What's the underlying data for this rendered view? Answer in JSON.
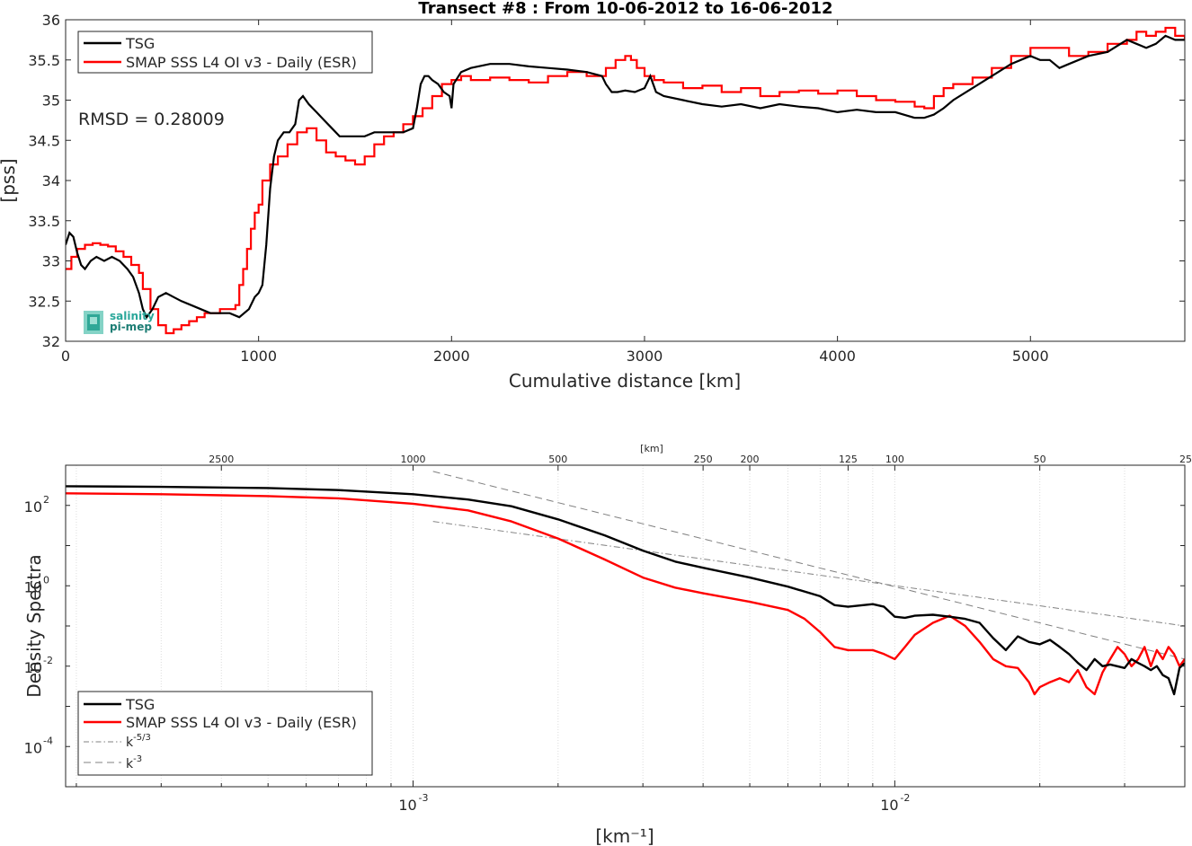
{
  "chart_data": [
    {
      "type": "line",
      "title": "Transect #8 : From 10-06-2012 to 16-06-2012",
      "xlabel": "Cumulative distance [km]",
      "ylabel": "[pss]",
      "xlim": [
        0,
        5800
      ],
      "ylim": [
        32,
        36
      ],
      "xticks": [
        0,
        1000,
        2000,
        3000,
        4000,
        5000
      ],
      "yticks": [
        32,
        32.5,
        33,
        33.5,
        34,
        34.5,
        35,
        35.5,
        36
      ],
      "xtick_labels": [
        "0",
        "1000",
        "2000",
        "3000",
        "4000",
        "5000"
      ],
      "ytick_labels": [
        "32",
        "32.5",
        "33",
        "33.5",
        "34",
        "34.5",
        "35",
        "35.5",
        "36"
      ],
      "grid": false,
      "legend_position": "top-left",
      "annotation": "RMSD = 0.28009",
      "logo": [
        "salinity",
        "pi-mep"
      ],
      "series": [
        {
          "name": "TSG",
          "color": "#000000",
          "x": [
            0,
            20,
            40,
            60,
            80,
            100,
            130,
            160,
            200,
            240,
            280,
            320,
            350,
            380,
            400,
            420,
            450,
            480,
            520,
            560,
            600,
            650,
            700,
            750,
            800,
            850,
            900,
            950,
            980,
            1000,
            1020,
            1040,
            1060,
            1080,
            1100,
            1130,
            1160,
            1190,
            1210,
            1230,
            1260,
            1300,
            1340,
            1380,
            1420,
            1460,
            1500,
            1550,
            1600,
            1650,
            1700,
            1750,
            1800,
            1820,
            1840,
            1860,
            1880,
            1900,
            1930,
            1960,
            1990,
            2000,
            2010,
            2050,
            2100,
            2200,
            2300,
            2400,
            2500,
            2600,
            2700,
            2780,
            2800,
            2830,
            2860,
            2900,
            2950,
            3000,
            3030,
            3060,
            3100,
            3200,
            3300,
            3400,
            3500,
            3600,
            3700,
            3800,
            3900,
            4000,
            4100,
            4200,
            4300,
            4400,
            4450,
            4500,
            4550,
            4600,
            4700,
            4800,
            4900,
            5000,
            5050,
            5100,
            5150,
            5200,
            5300,
            5400,
            5500,
            5550,
            5600,
            5650,
            5700,
            5750,
            5800
          ],
          "values": [
            33.2,
            33.35,
            33.3,
            33.1,
            32.95,
            32.9,
            33.0,
            33.05,
            33.0,
            33.05,
            33.0,
            32.9,
            32.8,
            32.6,
            32.4,
            32.3,
            32.4,
            32.55,
            32.6,
            32.55,
            32.5,
            32.45,
            32.4,
            32.35,
            32.35,
            32.35,
            32.3,
            32.4,
            32.55,
            32.6,
            32.7,
            33.2,
            33.9,
            34.3,
            34.5,
            34.6,
            34.6,
            34.7,
            35.0,
            35.05,
            34.95,
            34.85,
            34.75,
            34.65,
            34.55,
            34.55,
            34.55,
            34.55,
            34.6,
            34.6,
            34.6,
            34.6,
            34.65,
            34.9,
            35.2,
            35.3,
            35.3,
            35.25,
            35.2,
            35.1,
            35.05,
            34.9,
            35.2,
            35.35,
            35.4,
            35.45,
            35.45,
            35.42,
            35.4,
            35.38,
            35.35,
            35.3,
            35.2,
            35.1,
            35.1,
            35.12,
            35.1,
            35.15,
            35.3,
            35.1,
            35.05,
            35.0,
            34.95,
            34.92,
            34.95,
            34.9,
            34.95,
            34.92,
            34.9,
            34.85,
            34.88,
            34.85,
            34.85,
            34.78,
            34.78,
            34.82,
            34.9,
            35.0,
            35.15,
            35.3,
            35.45,
            35.55,
            35.5,
            35.5,
            35.4,
            35.45,
            35.55,
            35.6,
            35.75,
            35.7,
            35.65,
            35.7,
            35.8,
            35.75,
            35.75
          ]
        },
        {
          "name": "SMAP SSS L4 OI v3 - Daily (ESR)",
          "color": "#ff0000",
          "x": [
            0,
            30,
            60,
            100,
            140,
            180,
            220,
            260,
            300,
            340,
            380,
            400,
            440,
            480,
            520,
            560,
            600,
            640,
            680,
            720,
            760,
            800,
            840,
            880,
            900,
            920,
            940,
            960,
            980,
            1000,
            1020,
            1060,
            1100,
            1150,
            1200,
            1250,
            1300,
            1350,
            1400,
            1450,
            1500,
            1550,
            1600,
            1650,
            1700,
            1750,
            1800,
            1850,
            1900,
            1950,
            2000,
            2050,
            2100,
            2200,
            2300,
            2400,
            2500,
            2600,
            2700,
            2800,
            2850,
            2900,
            2930,
            2960,
            3000,
            3050,
            3100,
            3200,
            3300,
            3400,
            3500,
            3600,
            3700,
            3800,
            3900,
            4000,
            4100,
            4200,
            4300,
            4400,
            4450,
            4500,
            4550,
            4600,
            4700,
            4800,
            4900,
            5000,
            5100,
            5200,
            5300,
            5400,
            5500,
            5550,
            5600,
            5650,
            5700,
            5750,
            5800
          ],
          "values": [
            32.9,
            33.05,
            33.15,
            33.2,
            33.22,
            33.2,
            33.18,
            33.12,
            33.05,
            32.95,
            32.85,
            32.65,
            32.4,
            32.2,
            32.1,
            32.15,
            32.2,
            32.25,
            32.3,
            32.35,
            32.35,
            32.4,
            32.4,
            32.45,
            32.7,
            32.9,
            33.15,
            33.4,
            33.6,
            33.7,
            34.0,
            34.2,
            34.3,
            34.45,
            34.6,
            34.65,
            34.5,
            34.35,
            34.3,
            34.25,
            34.2,
            34.3,
            34.45,
            34.55,
            34.6,
            34.7,
            34.8,
            34.9,
            35.05,
            35.2,
            35.25,
            35.3,
            35.25,
            35.28,
            35.25,
            35.22,
            35.3,
            35.35,
            35.3,
            35.4,
            35.5,
            35.55,
            35.5,
            35.4,
            35.3,
            35.25,
            35.22,
            35.15,
            35.18,
            35.1,
            35.15,
            35.05,
            35.1,
            35.12,
            35.08,
            35.12,
            35.05,
            35.0,
            34.98,
            34.92,
            34.9,
            35.05,
            35.15,
            35.2,
            35.28,
            35.4,
            35.55,
            35.65,
            35.65,
            35.55,
            35.6,
            35.7,
            35.75,
            35.85,
            35.8,
            35.85,
            35.9,
            35.8,
            35.75
          ]
        }
      ]
    },
    {
      "type": "line",
      "xlabel": "[km⁻¹]",
      "ylabel": "Density Spectra",
      "xscale": "log",
      "yscale": "log",
      "xlim": [
        0.00019,
        0.04
      ],
      "ylim": [
        1e-05,
        1000
      ],
      "xticks": [
        0.001,
        0.01
      ],
      "xtick_labels": [
        "10",
        "10"
      ],
      "xtick_exponents": [
        "-3",
        "-2"
      ],
      "yticks": [
        0.0001,
        0.01,
        1,
        100
      ],
      "ytick_labels": [
        "10",
        "10",
        "10",
        "10"
      ],
      "ytick_exponents": [
        "-4",
        "-2",
        "0",
        "2"
      ],
      "top_axis_label": "[km]",
      "top_axis_ticks": [
        2500,
        1000,
        500,
        250,
        200,
        125,
        100,
        50,
        25
      ],
      "top_axis_tick_labels": [
        "2500",
        "1000",
        "500",
        "250",
        "200",
        "125",
        "100",
        "50",
        "25"
      ],
      "grid": true,
      "legend_position": "bottom-left",
      "series": [
        {
          "name": "TSG",
          "color": "#000000",
          "x": [
            0.00019,
            0.0003,
            0.0005,
            0.0007,
            0.001,
            0.0013,
            0.0016,
            0.002,
            0.0025,
            0.003,
            0.0035,
            0.004,
            0.005,
            0.006,
            0.007,
            0.0075,
            0.008,
            0.009,
            0.0095,
            0.01,
            0.0105,
            0.011,
            0.012,
            0.013,
            0.014,
            0.015,
            0.016,
            0.017,
            0.018,
            0.019,
            0.02,
            0.021,
            0.022,
            0.023,
            0.024,
            0.025,
            0.026,
            0.027,
            0.028,
            0.03,
            0.031,
            0.032,
            0.033,
            0.034,
            0.035,
            0.036,
            0.037,
            0.038,
            0.039,
            0.04
          ],
          "values": [
            300,
            290,
            270,
            240,
            190,
            140,
            95,
            45,
            18,
            7.5,
            4,
            2.8,
            1.6,
            0.95,
            0.55,
            0.33,
            0.3,
            0.35,
            0.3,
            0.17,
            0.16,
            0.18,
            0.19,
            0.17,
            0.15,
            0.12,
            0.05,
            0.025,
            0.055,
            0.04,
            0.035,
            0.045,
            0.03,
            0.02,
            0.012,
            0.008,
            0.015,
            0.01,
            0.011,
            0.009,
            0.015,
            0.012,
            0.01,
            0.008,
            0.01,
            0.006,
            0.005,
            0.002,
            0.009,
            0.012
          ]
        },
        {
          "name": "SMAP SSS L4 OI v3 - Daily (ESR)",
          "color": "#ff0000",
          "x": [
            0.00019,
            0.0003,
            0.0005,
            0.0007,
            0.001,
            0.0013,
            0.0016,
            0.002,
            0.0025,
            0.003,
            0.0035,
            0.004,
            0.005,
            0.006,
            0.0065,
            0.007,
            0.0075,
            0.008,
            0.009,
            0.0095,
            0.01,
            0.0105,
            0.011,
            0.012,
            0.013,
            0.014,
            0.015,
            0.016,
            0.017,
            0.018,
            0.019,
            0.0195,
            0.02,
            0.021,
            0.022,
            0.023,
            0.024,
            0.025,
            0.026,
            0.027,
            0.028,
            0.029,
            0.03,
            0.031,
            0.032,
            0.033,
            0.034,
            0.035,
            0.036,
            0.037,
            0.038,
            0.039,
            0.04
          ],
          "values": [
            200,
            190,
            170,
            150,
            110,
            75,
            40,
            15,
            4.5,
            1.6,
            0.9,
            0.65,
            0.4,
            0.25,
            0.15,
            0.07,
            0.03,
            0.025,
            0.025,
            0.02,
            0.015,
            0.03,
            0.06,
            0.12,
            0.18,
            0.1,
            0.04,
            0.015,
            0.01,
            0.009,
            0.004,
            0.002,
            0.003,
            0.004,
            0.005,
            0.004,
            0.008,
            0.003,
            0.002,
            0.007,
            0.015,
            0.03,
            0.02,
            0.01,
            0.015,
            0.03,
            0.01,
            0.025,
            0.015,
            0.03,
            0.02,
            0.01,
            0.015
          ]
        },
        {
          "name": "k^-5/3",
          "dash": "dashdot",
          "color": "#808080",
          "x": [
            0.0011,
            0.04
          ],
          "values": [
            40,
            0.1
          ]
        },
        {
          "name": "k^-3",
          "dash": "dashed",
          "color": "#808080",
          "x": [
            0.0011,
            0.04
          ],
          "values": [
            700,
            0.015
          ]
        }
      ],
      "legend": [
        {
          "label": "TSG",
          "exp": ""
        },
        {
          "label": "SMAP SSS L4 OI v3 - Daily (ESR)",
          "exp": ""
        },
        {
          "label": "k",
          "exp": "-5/3"
        },
        {
          "label": "k",
          "exp": "-3"
        }
      ]
    }
  ]
}
